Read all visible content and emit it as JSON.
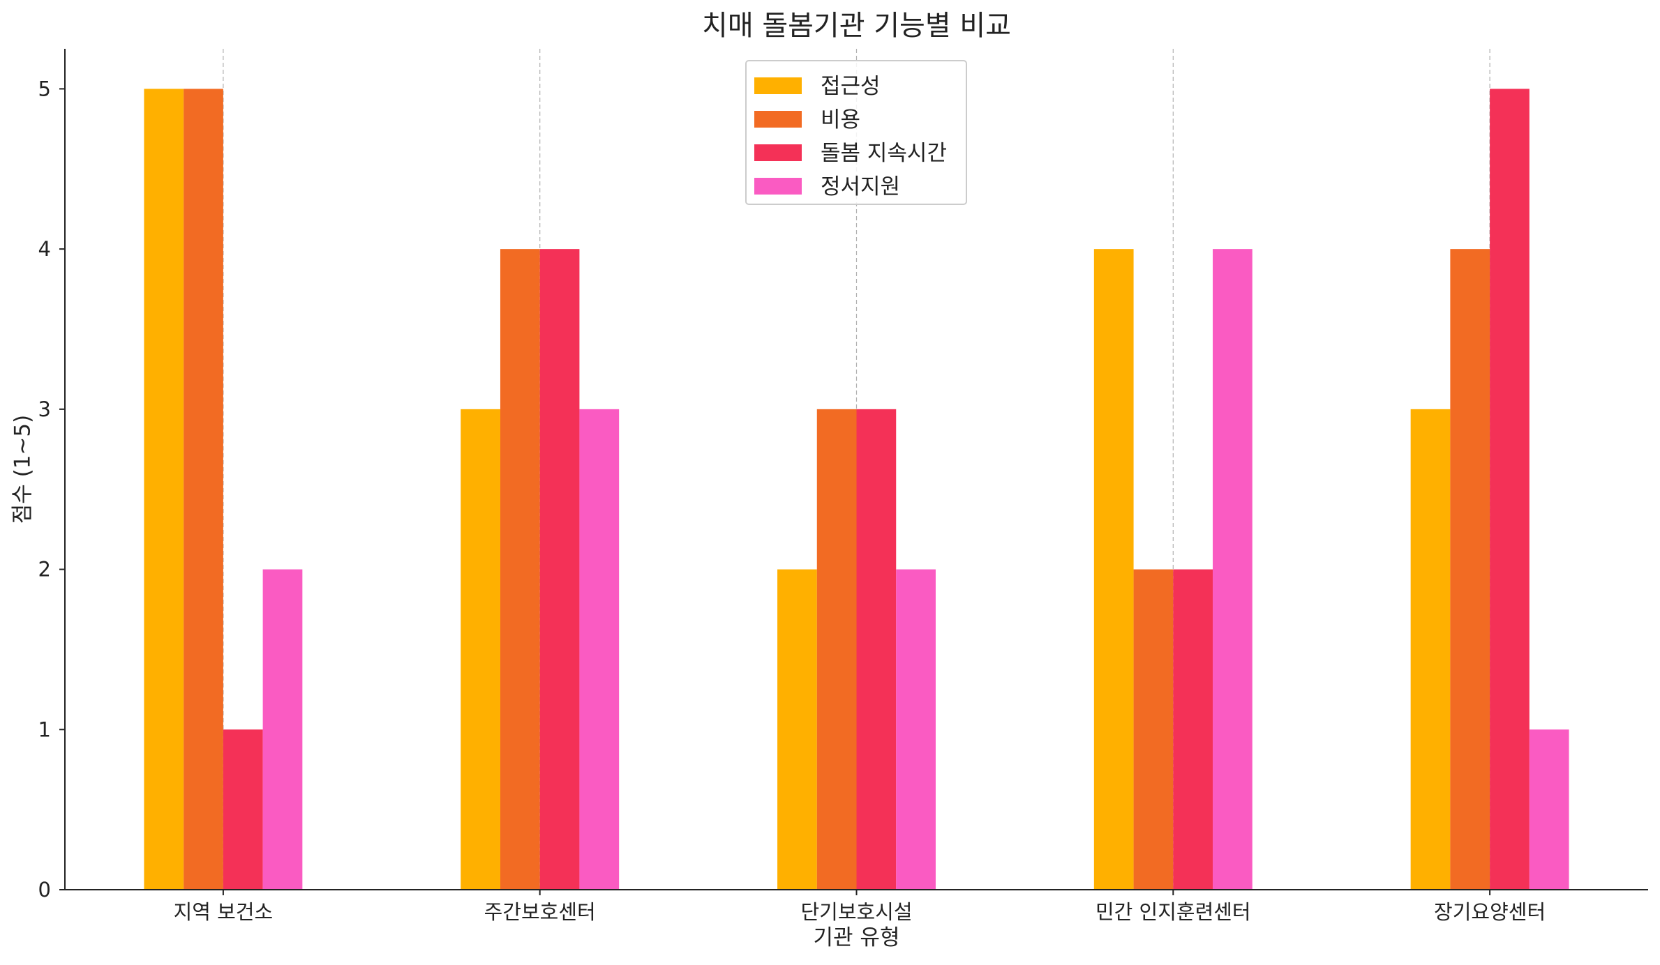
{
  "chart_data": {
    "type": "bar",
    "title": "치매 돌봄기관 기능별 비교",
    "xlabel": "기관 유형",
    "ylabel": "점수 (1~5)",
    "categories": [
      "지역 보건소",
      "주간보호센터",
      "단기보호시설",
      "민간 인지훈련센터",
      "장기요양센터"
    ],
    "series": [
      {
        "name": "접근성",
        "color": "#FFB000",
        "values": [
          5,
          3,
          2,
          4,
          3
        ]
      },
      {
        "name": "비용",
        "color": "#F26B23",
        "values": [
          5,
          4,
          3,
          2,
          4
        ]
      },
      {
        "name": "돌봄 지속시간",
        "color": "#F43157",
        "values": [
          1,
          4,
          3,
          2,
          5
        ]
      },
      {
        "name": "정서지원",
        "color": "#FA5BC2",
        "values": [
          2,
          3,
          2,
          4,
          1
        ]
      }
    ],
    "ylim": [
      0,
      5.25
    ],
    "yticks": [
      0,
      1,
      2,
      3,
      4,
      5
    ],
    "grid": "x-dashed",
    "legend_position": "top-center"
  }
}
